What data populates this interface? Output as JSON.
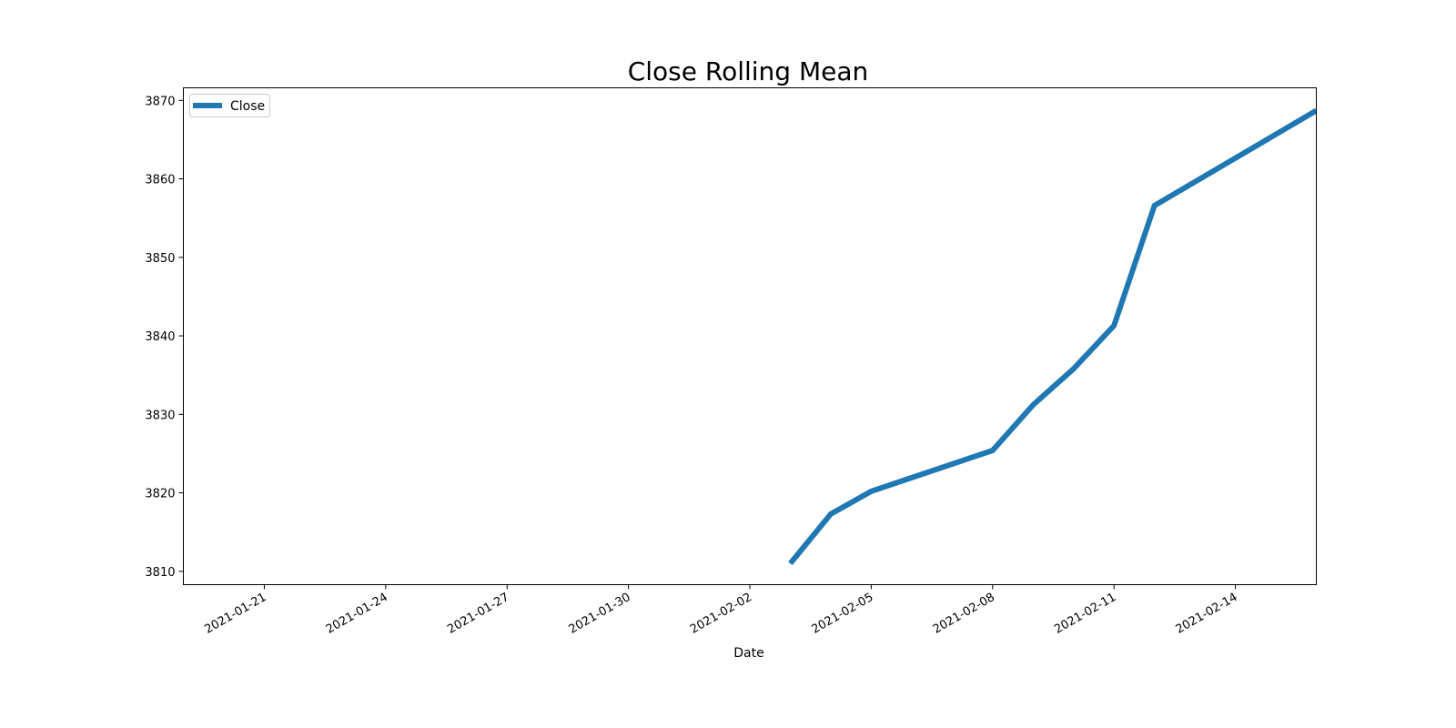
{
  "chart_data": {
    "type": "line",
    "title": "Close Rolling Mean",
    "xlabel": "Date",
    "ylabel": "",
    "xlim": [
      "2021-01-19",
      "2021-02-16"
    ],
    "ylim": [
      3808.3,
      3871.6
    ],
    "x_ticks": [
      "2021-01-21",
      "2021-01-24",
      "2021-01-27",
      "2021-01-30",
      "2021-02-02",
      "2021-02-05",
      "2021-02-08",
      "2021-02-11",
      "2021-02-14"
    ],
    "y_ticks": [
      3810,
      3820,
      3830,
      3840,
      3850,
      3860,
      3870
    ],
    "grid": false,
    "legend": {
      "placement": "top-left",
      "entries": [
        "Close"
      ]
    },
    "series": [
      {
        "name": "Close",
        "color": "#1f77b4",
        "x": [
          "2021-02-03",
          "2021-02-04",
          "2021-02-05",
          "2021-02-08",
          "2021-02-09",
          "2021-02-10",
          "2021-02-11",
          "2021-02-12",
          "2021-02-16"
        ],
        "values": [
          3811.0,
          3817.3,
          3820.2,
          3825.4,
          3831.2,
          3835.8,
          3841.3,
          3856.6,
          3868.7
        ]
      }
    ]
  }
}
